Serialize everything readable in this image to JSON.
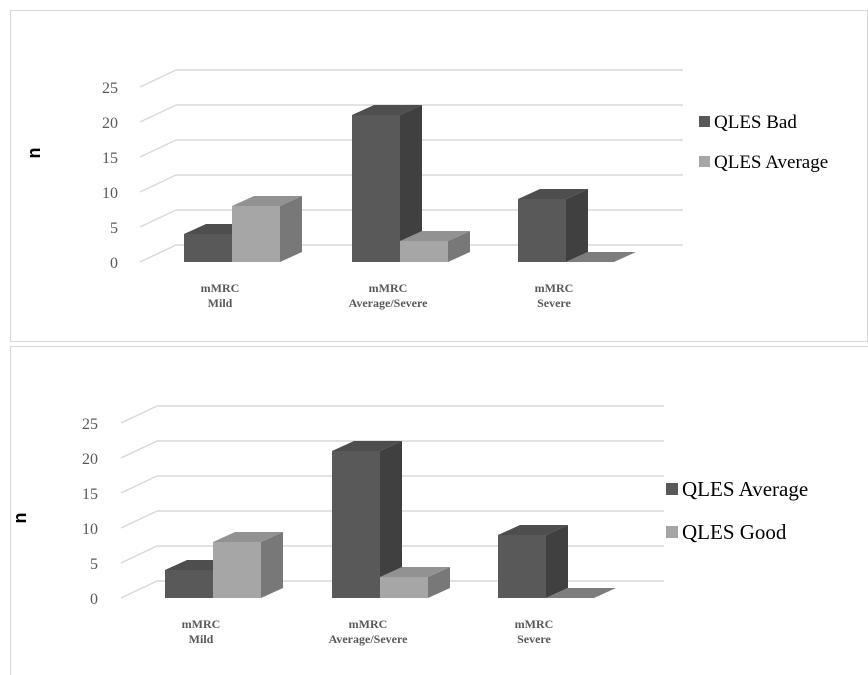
{
  "chart_data": [
    {
      "type": "bar",
      "categories": [
        "mMRC\nMild",
        "mMRC\nAverage/Severe",
        "mMRC\nSevere"
      ],
      "series": [
        {
          "name": "QLES Bad",
          "values": [
            4,
            21,
            9
          ],
          "color": "#595959"
        },
        {
          "name": "QLES Average",
          "values": [
            8,
            3,
            0
          ],
          "color": "#a6a6a6"
        }
      ],
      "ylabel": "n",
      "yticks": [
        0,
        5,
        10,
        15,
        20,
        25
      ],
      "ylim": [
        0,
        25
      ],
      "grid": true,
      "legend": "right",
      "style": "3d-column"
    },
    {
      "type": "bar",
      "categories": [
        "mMRC\nMild",
        "mMRC\nAverage/Severe",
        "mMRC\nSevere"
      ],
      "series": [
        {
          "name": "QLES Average",
          "values": [
            4,
            21,
            9
          ],
          "color": "#595959"
        },
        {
          "name": "QLES Good",
          "values": [
            8,
            3,
            0
          ],
          "color": "#a6a6a6"
        }
      ],
      "ylabel": "n",
      "yticks": [
        0,
        5,
        10,
        15,
        20,
        25
      ],
      "ylim": [
        0,
        25
      ],
      "grid": true,
      "legend": "right",
      "style": "3d-column"
    }
  ]
}
